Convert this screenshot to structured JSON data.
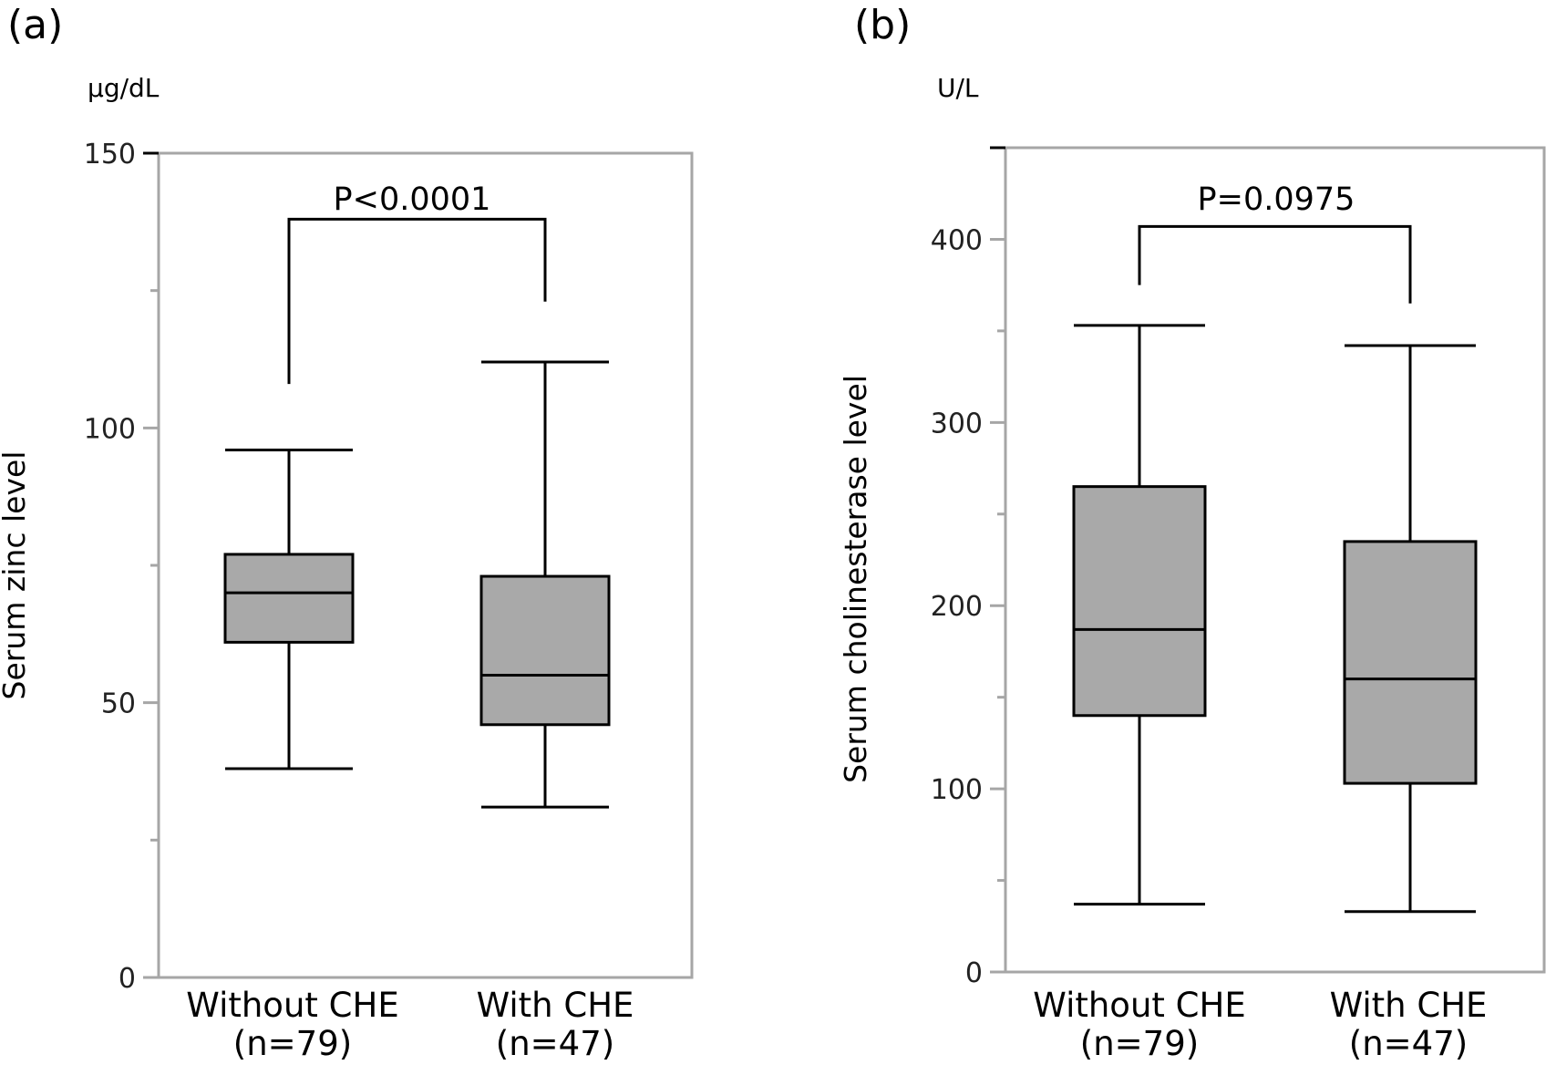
{
  "colors": {
    "box_fill": "#a9a9a9",
    "frame": "#a6a6a6",
    "line": "#000000"
  },
  "chart_data": [
    {
      "type": "box",
      "panel_label": "(a)",
      "unit": "μg/dL",
      "ylabel": "Serum zinc level",
      "ylim": [
        0,
        150
      ],
      "yticks": [
        0,
        50,
        100,
        150
      ],
      "ytick_labels": [
        "0",
        "50",
        "100",
        "150"
      ],
      "yminor_ticks": [
        25,
        75,
        125
      ],
      "categories": [
        {
          "name": "Without CHE",
          "n_label": "(n=79)"
        },
        {
          "name": "With CHE",
          "n_label": "(n=47)"
        }
      ],
      "boxes": [
        {
          "whisker_low": 38,
          "q1": 61,
          "median": 70,
          "q3": 77,
          "whisker_high": 96
        },
        {
          "whisker_low": 31,
          "q1": 46,
          "median": 55,
          "q3": 73,
          "whisker_high": 112
        }
      ],
      "comparison": {
        "text": "P<0.0001",
        "bracket_y": 138,
        "left_drop": 108,
        "right_drop": 123
      }
    },
    {
      "type": "box",
      "panel_label": "(b)",
      "unit": "U/L",
      "ylabel": "Serum cholinesterase level",
      "ylim": [
        0,
        450
      ],
      "yticks": [
        0,
        100,
        200,
        300,
        400
      ],
      "ytick_labels": [
        "0",
        "100",
        "200",
        "300",
        "400"
      ],
      "yminor_ticks": [
        50,
        150,
        250,
        350
      ],
      "categories": [
        {
          "name": "Without CHE",
          "n_label": "(n=79)"
        },
        {
          "name": "With CHE",
          "n_label": "(n=47)"
        }
      ],
      "boxes": [
        {
          "whisker_low": 37,
          "q1": 140,
          "median": 187,
          "q3": 265,
          "whisker_high": 353
        },
        {
          "whisker_low": 33,
          "q1": 103,
          "median": 160,
          "q3": 235,
          "whisker_high": 342
        }
      ],
      "comparison": {
        "text": "P=0.0975",
        "bracket_y": 407,
        "left_drop": 375,
        "right_drop": 365
      }
    }
  ]
}
